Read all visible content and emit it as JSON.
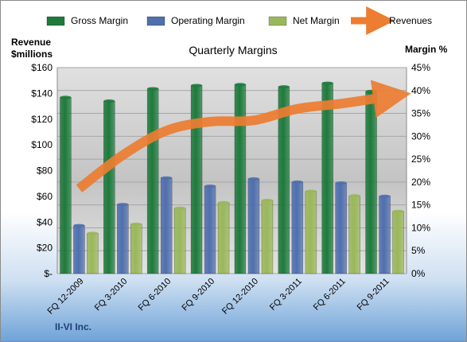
{
  "chart_data": {
    "type": "bar",
    "title": "Quarterly Margins",
    "company": "II-VI Inc.",
    "left_axis_label": [
      "Revenue",
      "$millions"
    ],
    "right_axis_label": "Margin %",
    "categories": [
      "FQ 12-2009",
      "FQ 3-2010",
      "FQ 6-2010",
      "FQ 9-2010",
      "FQ 12-2010",
      "FQ 3-2011",
      "FQ 6-2011",
      "FQ 9-2011"
    ],
    "left_ticks": [
      "$-",
      "$20",
      "$40",
      "$60",
      "$80",
      "$100",
      "$120",
      "$140",
      "$160"
    ],
    "right_ticks": [
      "0%",
      "5%",
      "10%",
      "15%",
      "20%",
      "25%",
      "30%",
      "35%",
      "40%",
      "45%"
    ],
    "left_ylim": [
      0,
      160
    ],
    "right_ylim": [
      0,
      45
    ],
    "series": [
      {
        "name": "Gross Margin",
        "axis": "right",
        "color": "#1e7a3c",
        "values": [
          38.5,
          37.7,
          40.4,
          41.1,
          41.3,
          40.8,
          41.6,
          39.8
        ]
      },
      {
        "name": "Operating Margin",
        "axis": "right",
        "color": "#4f6fae",
        "values": [
          10.5,
          15.1,
          20.9,
          19.1,
          20.7,
          20.0,
          19.8,
          16.9
        ]
      },
      {
        "name": "Net Margin",
        "axis": "right",
        "color": "#9ab85a",
        "values": [
          8.8,
          10.8,
          14.3,
          15.5,
          16.0,
          18.0,
          17.0,
          13.6
        ]
      },
      {
        "name": "Revenues",
        "axis": "left",
        "type": "line",
        "color": "#ed7d31",
        "values": [
          66,
          92,
          111,
          118,
          119,
          128,
          132,
          137
        ]
      }
    ],
    "grid": true,
    "legend_position": "top"
  }
}
